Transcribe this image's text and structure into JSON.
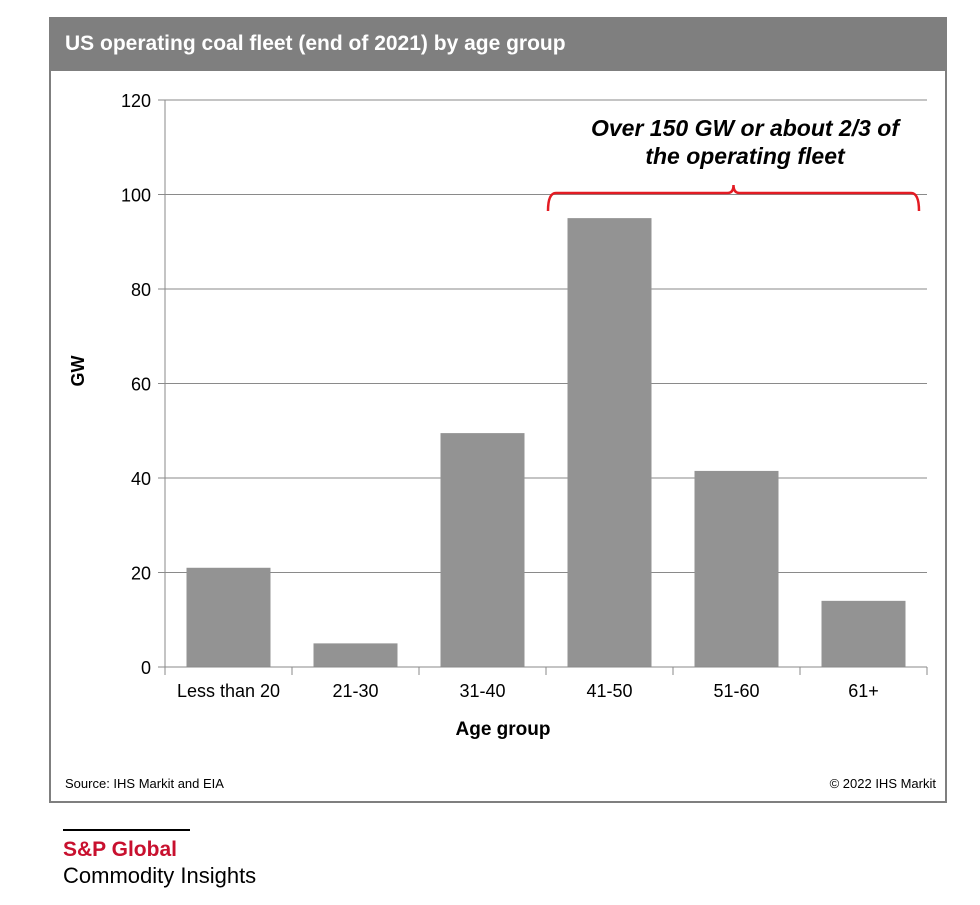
{
  "title": "US operating coal fleet (end of 2021) by age group",
  "source": "Source: IHS Markit and EIA",
  "copyright": "© 2022 IHS Markit",
  "brand": {
    "name": "S&P Global",
    "subtitle": "Commodity Insights",
    "name_color": "#c8102e"
  },
  "colors": {
    "frame": "#7f7f7f",
    "bar": "#939393",
    "annotation": "#e31b23"
  },
  "chart_data": {
    "type": "bar",
    "categories": [
      "Less than 20",
      "21-30",
      "31-40",
      "41-50",
      "51-60",
      "61+"
    ],
    "values": [
      21,
      5,
      49.5,
      95,
      41.5,
      14
    ],
    "xlabel": "Age group",
    "ylabel": "GW",
    "ylim": [
      0,
      120
    ],
    "yticks": [
      0,
      20,
      40,
      60,
      80,
      100,
      120
    ],
    "grid": true,
    "annotation": {
      "text_line1": "Over 150 GW or about 2/3 of",
      "text_line2": "the operating fleet",
      "spans_categories": [
        "41-50",
        "51-60",
        "61+"
      ]
    }
  }
}
